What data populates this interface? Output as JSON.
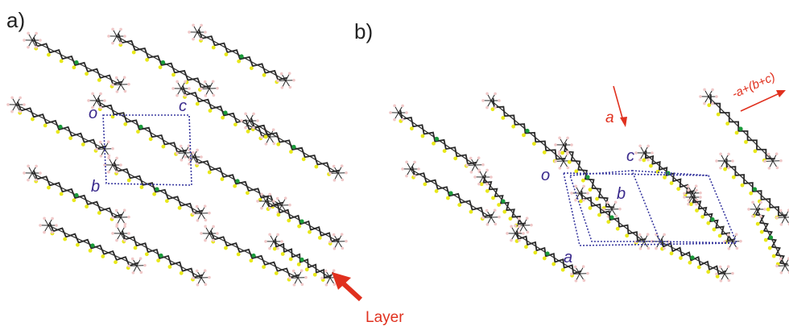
{
  "panels": {
    "a": {
      "label": "a)",
      "axes": {
        "origin": "o",
        "c": "c",
        "b": "b"
      },
      "arrow_label": "Layer"
    },
    "b": {
      "label": "b)",
      "axes": {
        "origin": "o",
        "c": "c",
        "b": "b",
        "a": "a"
      },
      "view_arrow_label": "a",
      "direction_label": "-a+(b+c)"
    }
  },
  "colors": {
    "cell_edge": "#3a3aa0",
    "annotation": "#e0301e",
    "sulfur": "#e8e81a",
    "metal": "#1a9a3a",
    "carbon": "#2a2a2a",
    "hydrogen": "#f0c8c8"
  }
}
